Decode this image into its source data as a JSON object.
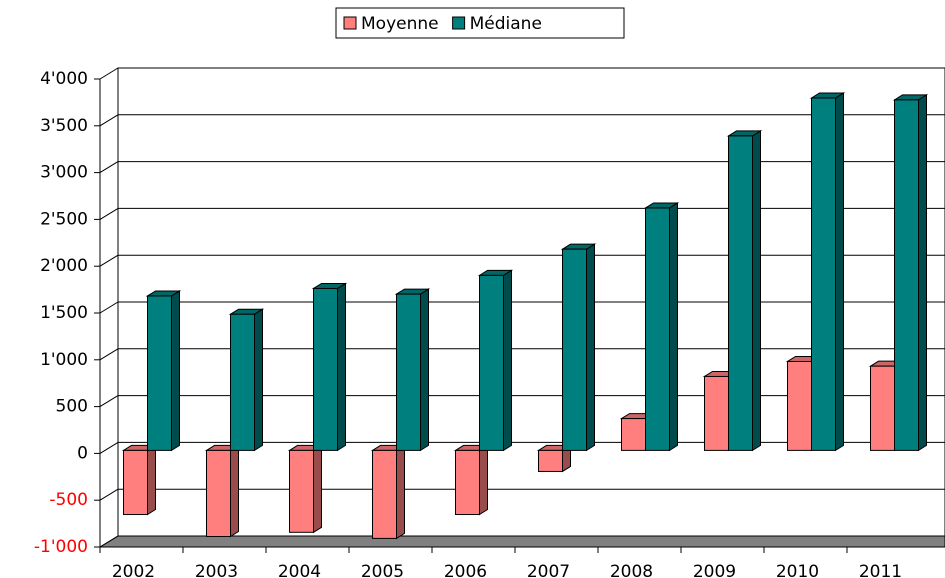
{
  "chart_data": {
    "type": "bar3d",
    "categories": [
      "2002",
      "2003",
      "2004",
      "2005",
      "2006",
      "2007",
      "2008",
      "2009",
      "2010",
      "2011"
    ],
    "series": [
      {
        "name": "Moyenne",
        "color": "#ff7f7f",
        "values": [
          -685,
          -920,
          -875,
          -940,
          -685,
          -225,
          340,
          790,
          950,
          900
        ]
      },
      {
        "name": "Médiane",
        "color": "#007f7f",
        "values": [
          1650,
          1455,
          1730,
          1670,
          1870,
          2150,
          2590,
          3360,
          3765,
          3745
        ]
      }
    ],
    "ylim": [
      -1000,
      4000
    ],
    "yticks": [
      {
        "value": -1000,
        "label": "-1'000"
      },
      -500,
      0,
      500,
      {
        "value": 1000,
        "label": "1'000"
      },
      {
        "value": 1500,
        "label": "1'500"
      },
      {
        "value": 2000,
        "label": "2'000"
      },
      {
        "value": 2500,
        "label": "2'500"
      },
      {
        "value": 3000,
        "label": "3'000"
      },
      {
        "value": 3500,
        "label": "3'500"
      },
      {
        "value": 4000,
        "label": "4'000"
      }
    ],
    "negative_tick_color": "#ff0000",
    "grid": true,
    "legend": "top"
  }
}
